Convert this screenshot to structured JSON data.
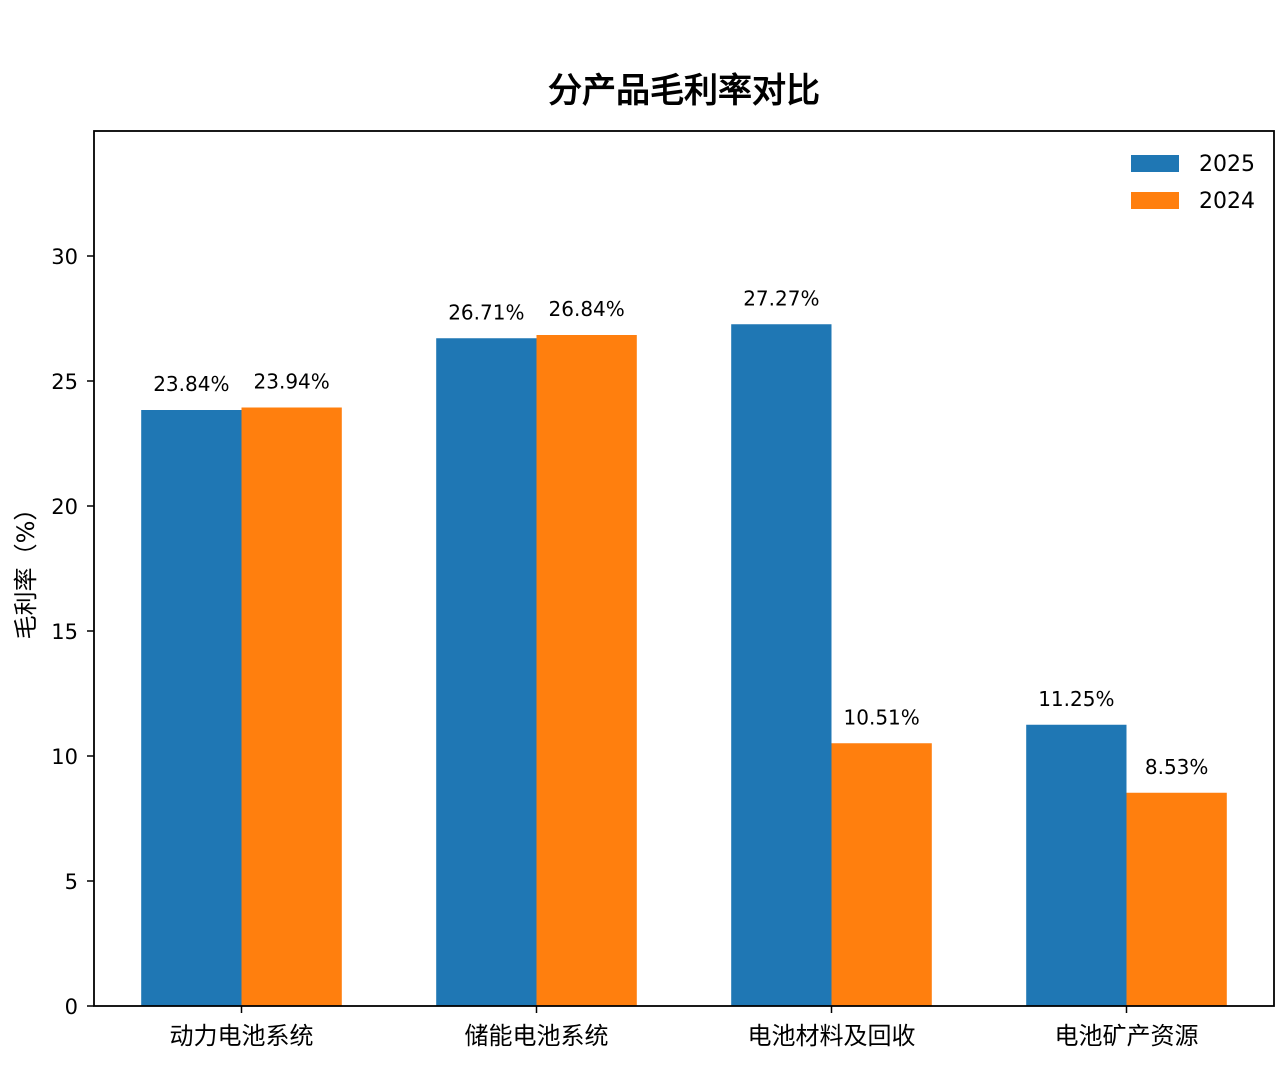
{
  "chart_data": {
    "type": "bar",
    "title": "分产品毛利率对比",
    "xlabel": "",
    "ylabel": "毛利率（%）",
    "ylim": [
      0,
      35
    ],
    "yticks": [
      0,
      5,
      10,
      15,
      20,
      25,
      30
    ],
    "categories": [
      "动力电池系统",
      "储能电池系统",
      "电池材料及回收",
      "电池矿产资源"
    ],
    "series": [
      {
        "name": "2025",
        "color": "#1f77b4",
        "values": [
          23.84,
          26.71,
          27.27,
          11.25
        ],
        "labels": [
          "23.84%",
          "26.71%",
          "27.27%",
          "11.25%"
        ]
      },
      {
        "name": "2024",
        "color": "#ff7f0e",
        "values": [
          23.94,
          26.84,
          10.51,
          8.53
        ],
        "labels": [
          "23.94%",
          "26.84%",
          "10.51%",
          "8.53%"
        ]
      }
    ],
    "legend": "top-right",
    "grid": false
  }
}
